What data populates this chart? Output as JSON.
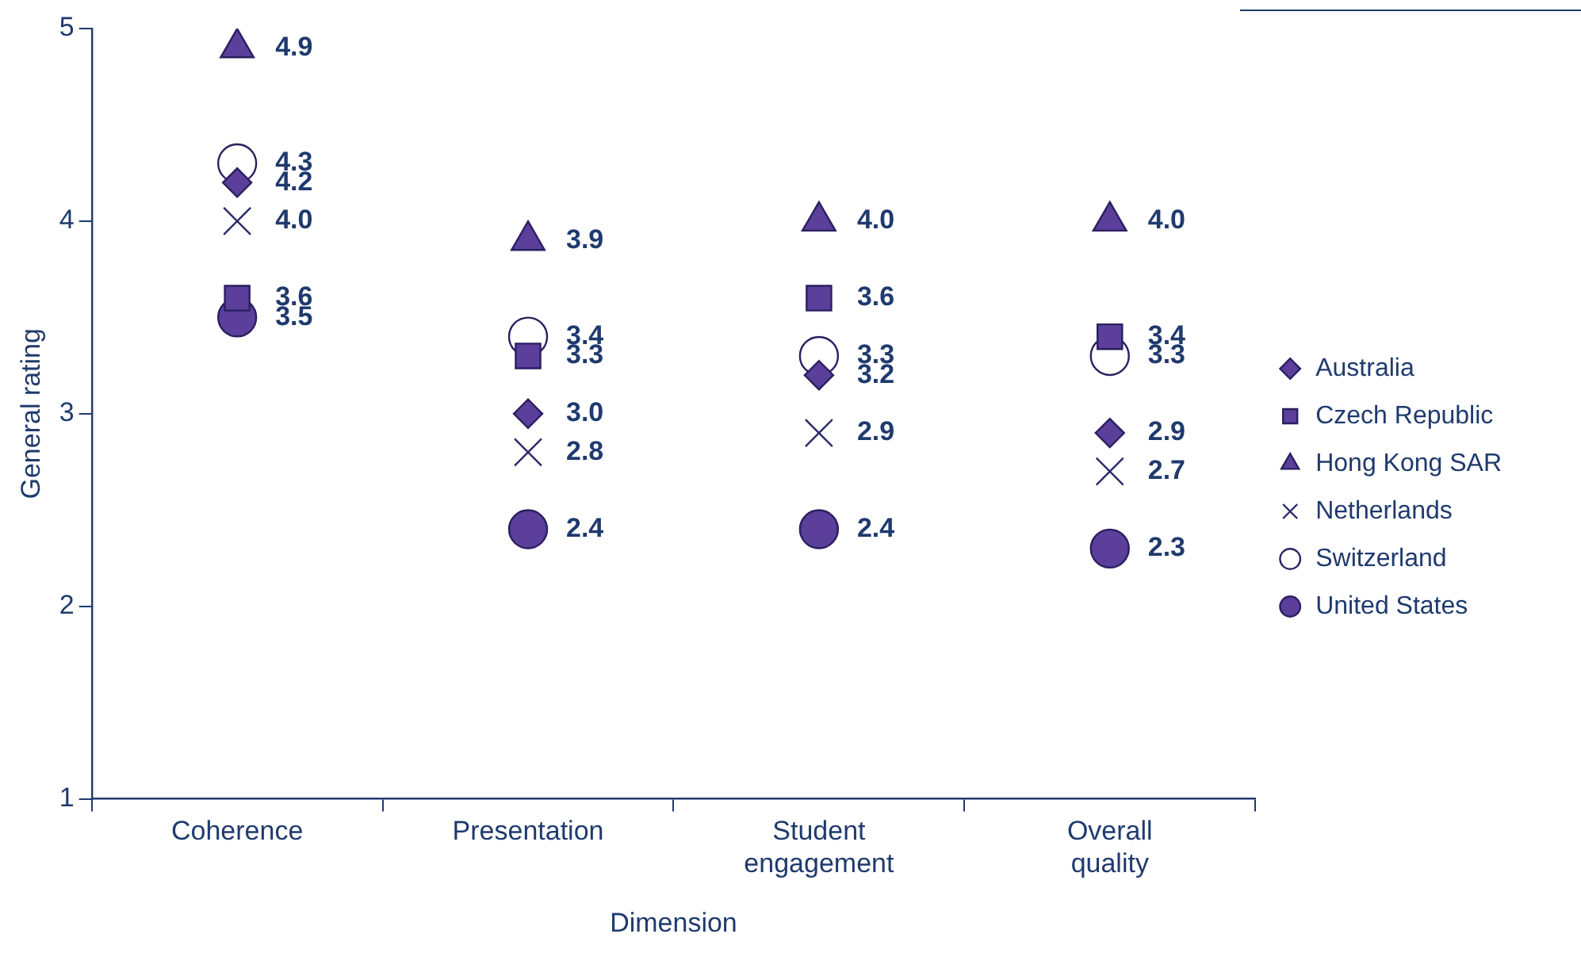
{
  "chart_data": {
    "type": "scatter",
    "xlabel": "Dimension",
    "ylabel": "General rating",
    "categories": [
      "Coherence",
      "Presentation",
      "Student engagement",
      "Overall quality"
    ],
    "ylim": [
      1,
      5
    ],
    "yticks": [
      1,
      2,
      3,
      4,
      5
    ],
    "grid": false,
    "legend": "right",
    "series": [
      {
        "name": "Australia",
        "color": "#5b3f9b",
        "marker": "diamond",
        "values": [
          4.2,
          3.0,
          3.2,
          2.9
        ],
        "value_labels": [
          "4.2",
          "3.0",
          "3.2",
          "2.9"
        ]
      },
      {
        "name": "Czech Republic",
        "color": "#5b3f9b",
        "marker": "square",
        "values": [
          3.6,
          3.3,
          3.6,
          3.4
        ],
        "value_labels": [
          "3.6",
          "3.3",
          "3.6",
          "3.4"
        ]
      },
      {
        "name": "Hong Kong SAR",
        "color": "#5b3f9b",
        "marker": "triangle",
        "values": [
          4.9,
          3.9,
          4.0,
          4.0
        ],
        "value_labels": [
          "4.9",
          "3.9",
          "4.0",
          "4.0"
        ]
      },
      {
        "name": "Netherlands",
        "color": "#2a2a6a",
        "marker": "cross",
        "values": [
          4.0,
          2.8,
          2.9,
          2.7
        ],
        "value_labels": [
          "4.0",
          "2.8",
          "2.9",
          "2.7"
        ]
      },
      {
        "name": "Switzerland",
        "color": "#ffffff",
        "marker": "circle",
        "values": [
          4.3,
          3.4,
          3.3,
          3.3
        ],
        "value_labels": [
          "4.3",
          "3.4",
          "3.3",
          "3.3"
        ]
      },
      {
        "name": "United States",
        "color": "#5b3f9b",
        "marker": "circle",
        "values": [
          3.5,
          2.4,
          2.4,
          2.3
        ],
        "value_labels": [
          "3.5",
          "2.4",
          "2.4",
          "2.3"
        ]
      }
    ]
  }
}
